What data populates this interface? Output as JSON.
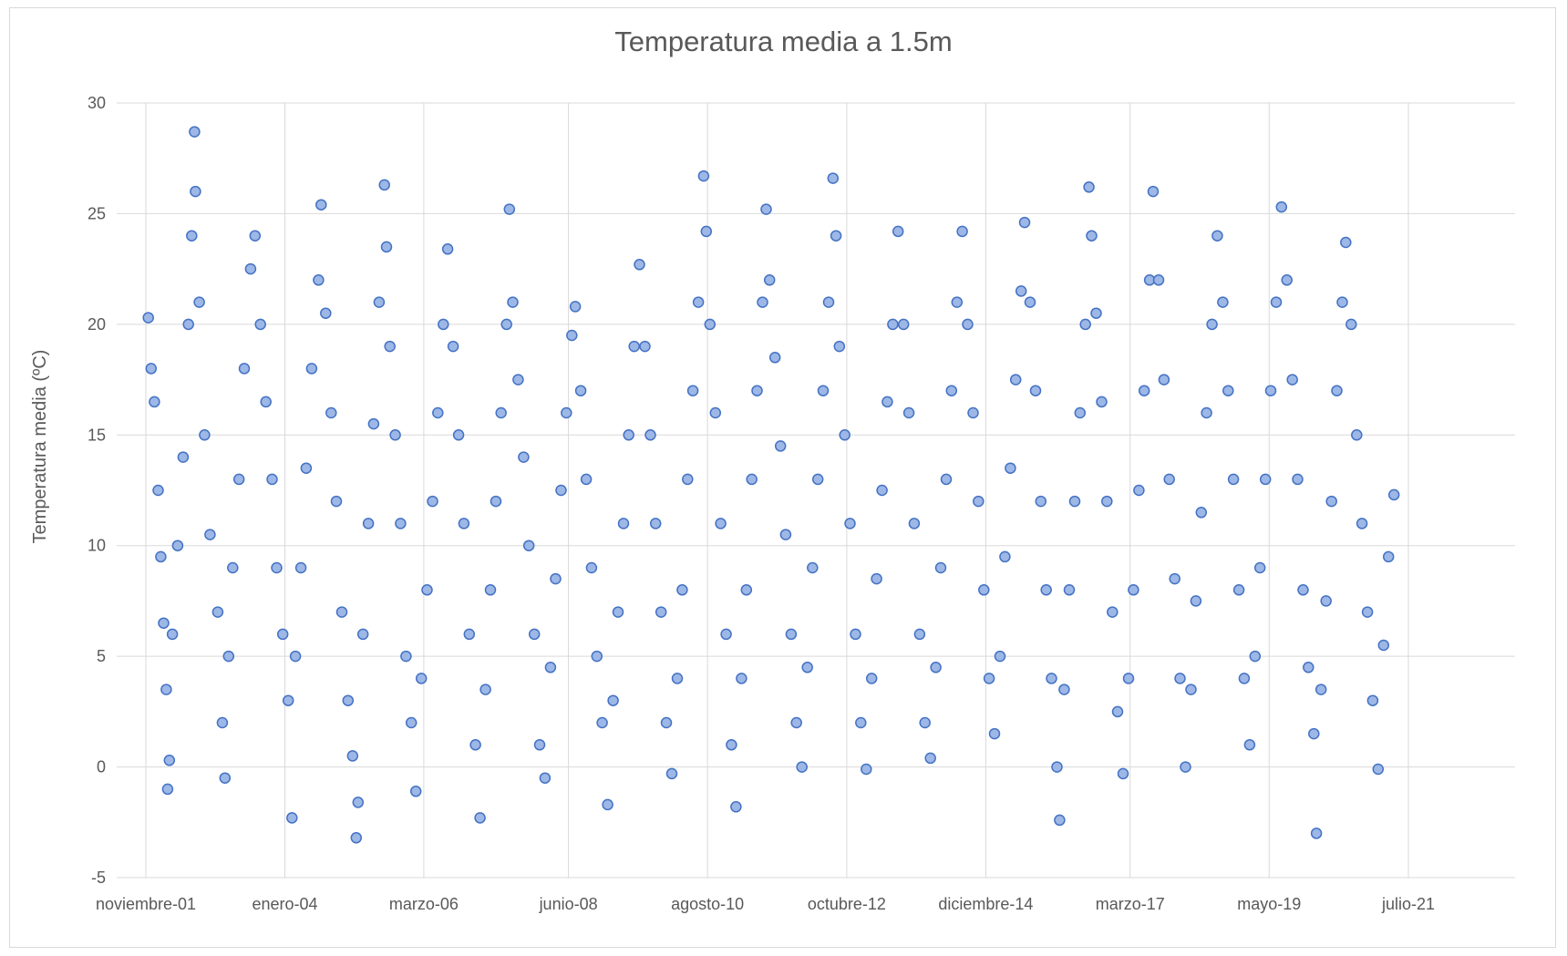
{
  "chart_data": {
    "type": "scatter",
    "title": "Temperatura media a 1.5m",
    "xlabel": "",
    "ylabel": "Temperatura media (ºC)",
    "ylim": [
      -5,
      30
    ],
    "yticks": [
      -5,
      0,
      5,
      10,
      15,
      20,
      25,
      30
    ],
    "xlim": [
      "2001-11-01",
      "2022-12-01"
    ],
    "xticks": [
      {
        "date": "2001-11-01",
        "label": "noviembre-01"
      },
      {
        "date": "2004-01-01",
        "label": "enero-04"
      },
      {
        "date": "2006-03-01",
        "label": "marzo-06"
      },
      {
        "date": "2008-06-01",
        "label": "junio-08"
      },
      {
        "date": "2010-08-01",
        "label": "agosto-10"
      },
      {
        "date": "2012-10-01",
        "label": "octubre-12"
      },
      {
        "date": "2014-12-01",
        "label": "diciembre-14"
      },
      {
        "date": "2017-03-01",
        "label": "marzo-17"
      },
      {
        "date": "2019-05-01",
        "label": "mayo-19"
      },
      {
        "date": "2021-07-01",
        "label": "julio-21"
      }
    ],
    "grid": true,
    "legend": "none",
    "marker_fill": "#9db7e6",
    "marker_stroke": "#4472c4",
    "gridline_color": "#d9d9d9",
    "series": [
      {
        "points": [
          [
            "2001-11-15",
            20.3
          ],
          [
            "2001-12-01",
            18.0
          ],
          [
            "2001-12-20",
            16.5
          ],
          [
            "2002-01-10",
            12.5
          ],
          [
            "2002-01-25",
            9.5
          ],
          [
            "2002-02-10",
            6.5
          ],
          [
            "2002-02-25",
            3.5
          ],
          [
            "2002-03-05",
            -1.0
          ],
          [
            "2002-03-15",
            0.3
          ],
          [
            "2002-04-01",
            6.0
          ],
          [
            "2002-05-01",
            10.0
          ],
          [
            "2002-06-01",
            14.0
          ],
          [
            "2002-07-01",
            20.0
          ],
          [
            "2002-07-20",
            24.0
          ],
          [
            "2002-08-05",
            28.7
          ],
          [
            "2002-08-10",
            26.0
          ],
          [
            "2002-09-01",
            21.0
          ],
          [
            "2002-10-01",
            15.0
          ],
          [
            "2002-11-01",
            10.5
          ],
          [
            "2002-12-15",
            7.0
          ],
          [
            "2003-01-10",
            2.0
          ],
          [
            "2003-01-25",
            -0.5
          ],
          [
            "2003-02-15",
            5.0
          ],
          [
            "2003-03-10",
            9.0
          ],
          [
            "2003-04-15",
            13.0
          ],
          [
            "2003-05-15",
            18.0
          ],
          [
            "2003-06-20",
            22.5
          ],
          [
            "2003-07-15",
            24.0
          ],
          [
            "2003-08-15",
            20.0
          ],
          [
            "2003-09-15",
            16.5
          ],
          [
            "2003-10-20",
            13.0
          ],
          [
            "2003-11-15",
            9.0
          ],
          [
            "2003-12-20",
            6.0
          ],
          [
            "2004-01-20",
            3.0
          ],
          [
            "2004-02-10",
            -2.3
          ],
          [
            "2004-03-01",
            5.0
          ],
          [
            "2004-04-01",
            9.0
          ],
          [
            "2004-05-01",
            13.5
          ],
          [
            "2004-06-01",
            18.0
          ],
          [
            "2004-07-10",
            22.0
          ],
          [
            "2004-07-25",
            25.4
          ],
          [
            "2004-08-20",
            20.5
          ],
          [
            "2004-09-20",
            16.0
          ],
          [
            "2004-10-20",
            12.0
          ],
          [
            "2004-11-20",
            7.0
          ],
          [
            "2004-12-25",
            3.0
          ],
          [
            "2005-01-20",
            0.5
          ],
          [
            "2005-02-10",
            -3.2
          ],
          [
            "2005-02-20",
            -1.6
          ],
          [
            "2005-03-20",
            6.0
          ],
          [
            "2005-04-20",
            11.0
          ],
          [
            "2005-05-20",
            15.5
          ],
          [
            "2005-06-20",
            21.0
          ],
          [
            "2005-07-20",
            26.3
          ],
          [
            "2005-08-01",
            23.5
          ],
          [
            "2005-08-20",
            19.0
          ],
          [
            "2005-09-20",
            15.0
          ],
          [
            "2005-10-20",
            11.0
          ],
          [
            "2005-11-20",
            5.0
          ],
          [
            "2005-12-20",
            2.0
          ],
          [
            "2006-01-15",
            -1.1
          ],
          [
            "2006-02-15",
            4.0
          ],
          [
            "2006-03-20",
            8.0
          ],
          [
            "2006-04-20",
            12.0
          ],
          [
            "2006-05-20",
            16.0
          ],
          [
            "2006-06-20",
            20.0
          ],
          [
            "2006-07-15",
            23.4
          ],
          [
            "2006-08-15",
            19.0
          ],
          [
            "2006-09-15",
            15.0
          ],
          [
            "2006-10-15",
            11.0
          ],
          [
            "2006-11-15",
            6.0
          ],
          [
            "2006-12-20",
            1.0
          ],
          [
            "2007-01-15",
            -2.3
          ],
          [
            "2007-02-15",
            3.5
          ],
          [
            "2007-03-15",
            8.0
          ],
          [
            "2007-04-15",
            12.0
          ],
          [
            "2007-05-15",
            16.0
          ],
          [
            "2007-06-15",
            20.0
          ],
          [
            "2007-07-01",
            25.2
          ],
          [
            "2007-07-20",
            21.0
          ],
          [
            "2007-08-20",
            17.5
          ],
          [
            "2007-09-20",
            14.0
          ],
          [
            "2007-10-20",
            10.0
          ],
          [
            "2007-11-20",
            6.0
          ],
          [
            "2007-12-20",
            1.0
          ],
          [
            "2008-01-20",
            -0.5
          ],
          [
            "2008-02-20",
            4.5
          ],
          [
            "2008-03-20",
            8.5
          ],
          [
            "2008-04-20",
            12.5
          ],
          [
            "2008-05-20",
            16.0
          ],
          [
            "2008-06-20",
            19.5
          ],
          [
            "2008-07-10",
            20.8
          ],
          [
            "2008-08-10",
            17.0
          ],
          [
            "2008-09-10",
            13.0
          ],
          [
            "2008-10-10",
            9.0
          ],
          [
            "2008-11-10",
            5.0
          ],
          [
            "2008-12-10",
            2.0
          ],
          [
            "2009-01-10",
            -1.7
          ],
          [
            "2009-02-10",
            3.0
          ],
          [
            "2009-03-10",
            7.0
          ],
          [
            "2009-04-10",
            11.0
          ],
          [
            "2009-05-10",
            15.0
          ],
          [
            "2009-06-10",
            19.0
          ],
          [
            "2009-07-10",
            22.7
          ],
          [
            "2009-08-10",
            19.0
          ],
          [
            "2009-09-10",
            15.0
          ],
          [
            "2009-10-10",
            11.0
          ],
          [
            "2009-11-10",
            7.0
          ],
          [
            "2009-12-10",
            2.0
          ],
          [
            "2010-01-10",
            -0.3
          ],
          [
            "2010-02-10",
            4.0
          ],
          [
            "2010-03-10",
            8.0
          ],
          [
            "2010-04-10",
            13.0
          ],
          [
            "2010-05-10",
            17.0
          ],
          [
            "2010-06-10",
            21.0
          ],
          [
            "2010-07-10",
            26.7
          ],
          [
            "2010-07-25",
            24.2
          ],
          [
            "2010-08-15",
            20.0
          ],
          [
            "2010-09-15",
            16.0
          ],
          [
            "2010-10-15",
            11.0
          ],
          [
            "2010-11-15",
            6.0
          ],
          [
            "2010-12-15",
            1.0
          ],
          [
            "2011-01-10",
            -1.8
          ],
          [
            "2011-02-10",
            4.0
          ],
          [
            "2011-03-10",
            8.0
          ],
          [
            "2011-04-10",
            13.0
          ],
          [
            "2011-05-10",
            17.0
          ],
          [
            "2011-06-10",
            21.0
          ],
          [
            "2011-07-01",
            25.2
          ],
          [
            "2011-07-20",
            22.0
          ],
          [
            "2011-08-20",
            18.5
          ],
          [
            "2011-09-20",
            14.5
          ],
          [
            "2011-10-20",
            10.5
          ],
          [
            "2011-11-20",
            6.0
          ],
          [
            "2011-12-20",
            2.0
          ],
          [
            "2012-01-20",
            0.0
          ],
          [
            "2012-02-20",
            4.5
          ],
          [
            "2012-03-20",
            9.0
          ],
          [
            "2012-04-20",
            13.0
          ],
          [
            "2012-05-20",
            17.0
          ],
          [
            "2012-06-20",
            21.0
          ],
          [
            "2012-07-15",
            26.6
          ],
          [
            "2012-08-01",
            24.0
          ],
          [
            "2012-08-20",
            19.0
          ],
          [
            "2012-09-20",
            15.0
          ],
          [
            "2012-10-20",
            11.0
          ],
          [
            "2012-11-20",
            6.0
          ],
          [
            "2012-12-20",
            2.0
          ],
          [
            "2013-01-20",
            -0.1
          ],
          [
            "2013-02-20",
            4.0
          ],
          [
            "2013-03-20",
            8.5
          ],
          [
            "2013-04-20",
            12.5
          ],
          [
            "2013-05-20",
            16.5
          ],
          [
            "2013-06-20",
            20.0
          ],
          [
            "2013-07-20",
            24.2
          ],
          [
            "2013-08-20",
            20.0
          ],
          [
            "2013-09-20",
            16.0
          ],
          [
            "2013-10-20",
            11.0
          ],
          [
            "2013-11-20",
            6.0
          ],
          [
            "2013-12-20",
            2.0
          ],
          [
            "2014-01-20",
            0.4
          ],
          [
            "2014-02-20",
            4.5
          ],
          [
            "2014-03-20",
            9.0
          ],
          [
            "2014-04-20",
            13.0
          ],
          [
            "2014-05-20",
            17.0
          ],
          [
            "2014-06-20",
            21.0
          ],
          [
            "2014-07-20",
            24.2
          ],
          [
            "2014-08-20",
            20.0
          ],
          [
            "2014-09-20",
            16.0
          ],
          [
            "2014-10-20",
            12.0
          ],
          [
            "2014-11-20",
            8.0
          ],
          [
            "2014-12-20",
            4.0
          ],
          [
            "2015-01-20",
            1.5
          ],
          [
            "2015-02-20",
            5.0
          ],
          [
            "2015-03-20",
            9.5
          ],
          [
            "2015-04-20",
            13.5
          ],
          [
            "2015-05-20",
            17.5
          ],
          [
            "2015-06-20",
            21.5
          ],
          [
            "2015-07-10",
            24.6
          ],
          [
            "2015-08-10",
            21.0
          ],
          [
            "2015-09-10",
            17.0
          ],
          [
            "2015-10-10",
            12.0
          ],
          [
            "2015-11-10",
            8.0
          ],
          [
            "2015-12-10",
            4.0
          ],
          [
            "2016-01-10",
            0.0
          ],
          [
            "2016-01-25",
            -2.4
          ],
          [
            "2016-02-20",
            3.5
          ],
          [
            "2016-03-20",
            8.0
          ],
          [
            "2016-04-20",
            12.0
          ],
          [
            "2016-05-20",
            16.0
          ],
          [
            "2016-06-20",
            20.0
          ],
          [
            "2016-07-10",
            26.2
          ],
          [
            "2016-07-25",
            24.0
          ],
          [
            "2016-08-20",
            20.5
          ],
          [
            "2016-09-20",
            16.5
          ],
          [
            "2016-10-20",
            12.0
          ],
          [
            "2016-11-20",
            7.0
          ],
          [
            "2016-12-20",
            2.5
          ],
          [
            "2017-01-20",
            -0.3
          ],
          [
            "2017-02-20",
            4.0
          ],
          [
            "2017-03-20",
            8.0
          ],
          [
            "2017-04-20",
            12.5
          ],
          [
            "2017-05-20",
            17.0
          ],
          [
            "2017-06-20",
            22.0
          ],
          [
            "2017-07-10",
            26.0
          ],
          [
            "2017-08-10",
            22.0
          ],
          [
            "2017-09-10",
            17.5
          ],
          [
            "2017-10-10",
            13.0
          ],
          [
            "2017-11-10",
            8.5
          ],
          [
            "2017-12-10",
            4.0
          ],
          [
            "2018-01-10",
            0.0
          ],
          [
            "2018-02-10",
            3.5
          ],
          [
            "2018-03-10",
            7.5
          ],
          [
            "2018-04-10",
            11.5
          ],
          [
            "2018-05-10",
            16.0
          ],
          [
            "2018-06-10",
            20.0
          ],
          [
            "2018-07-10",
            24.0
          ],
          [
            "2018-08-10",
            21.0
          ],
          [
            "2018-09-10",
            17.0
          ],
          [
            "2018-10-10",
            13.0
          ],
          [
            "2018-11-10",
            8.0
          ],
          [
            "2018-12-10",
            4.0
          ],
          [
            "2019-01-10",
            1.0
          ],
          [
            "2019-02-10",
            5.0
          ],
          [
            "2019-03-10",
            9.0
          ],
          [
            "2019-04-10",
            13.0
          ],
          [
            "2019-05-10",
            17.0
          ],
          [
            "2019-06-10",
            21.0
          ],
          [
            "2019-07-10",
            25.3
          ],
          [
            "2019-08-10",
            22.0
          ],
          [
            "2019-09-10",
            17.5
          ],
          [
            "2019-10-10",
            13.0
          ],
          [
            "2019-11-10",
            8.0
          ],
          [
            "2019-12-10",
            4.5
          ],
          [
            "2020-01-10",
            1.5
          ],
          [
            "2020-01-25",
            -3.0
          ],
          [
            "2020-02-20",
            3.5
          ],
          [
            "2020-03-20",
            7.5
          ],
          [
            "2020-04-20",
            12.0
          ],
          [
            "2020-05-20",
            17.0
          ],
          [
            "2020-06-20",
            21.0
          ],
          [
            "2020-07-10",
            23.7
          ],
          [
            "2020-08-10",
            20.0
          ],
          [
            "2020-09-10",
            15.0
          ],
          [
            "2020-10-10",
            11.0
          ],
          [
            "2020-11-10",
            7.0
          ],
          [
            "2020-12-10",
            3.0
          ],
          [
            "2021-01-10",
            -0.1
          ],
          [
            "2021-02-10",
            5.5
          ],
          [
            "2021-03-10",
            9.5
          ],
          [
            "2021-04-10",
            12.3
          ]
        ]
      }
    ]
  }
}
